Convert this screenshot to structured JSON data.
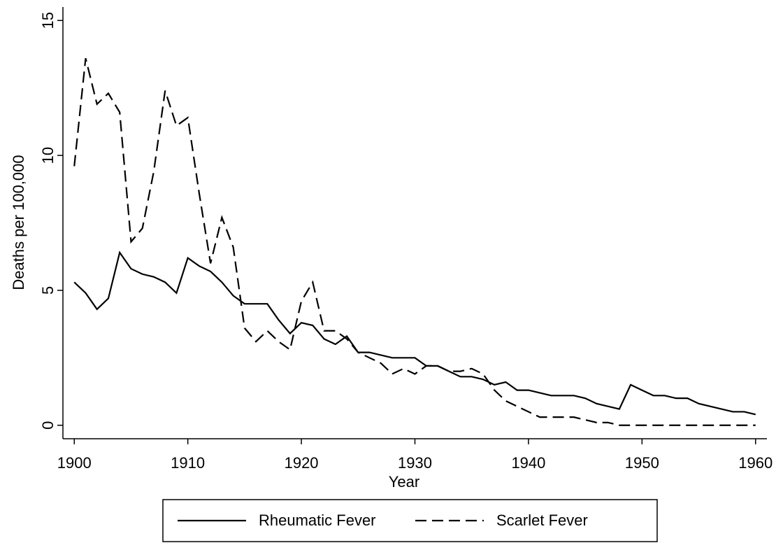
{
  "chart_data": {
    "type": "line",
    "xlabel": "Year",
    "ylabel": "Deaths per 100,000",
    "x": [
      1900,
      1901,
      1902,
      1903,
      1904,
      1905,
      1906,
      1907,
      1908,
      1909,
      1910,
      1911,
      1912,
      1913,
      1914,
      1915,
      1916,
      1917,
      1918,
      1919,
      1920,
      1921,
      1922,
      1923,
      1924,
      1925,
      1926,
      1927,
      1928,
      1929,
      1930,
      1931,
      1932,
      1933,
      1934,
      1935,
      1936,
      1937,
      1938,
      1939,
      1940,
      1941,
      1942,
      1943,
      1944,
      1945,
      1946,
      1947,
      1948,
      1949,
      1950,
      1951,
      1952,
      1953,
      1954,
      1955,
      1956,
      1957,
      1958,
      1959,
      1960
    ],
    "series": [
      {
        "name": "Rheumatic Fever",
        "color": "#000000",
        "style": "solid",
        "values": [
          5.3,
          4.9,
          4.3,
          4.7,
          6.4,
          5.8,
          5.6,
          5.5,
          5.3,
          4.9,
          6.2,
          5.9,
          5.7,
          5.3,
          4.8,
          4.5,
          4.5,
          4.5,
          3.9,
          3.4,
          3.8,
          3.7,
          3.2,
          3.0,
          3.3,
          2.7,
          2.7,
          2.6,
          2.5,
          2.5,
          2.5,
          2.2,
          2.2,
          2.0,
          1.8,
          1.8,
          1.7,
          1.5,
          1.6,
          1.3,
          1.3,
          1.2,
          1.1,
          1.1,
          1.1,
          1.0,
          0.8,
          0.7,
          0.6,
          1.5,
          1.3,
          1.1,
          1.1,
          1.0,
          1.0,
          0.8,
          0.7,
          0.6,
          0.5,
          0.5,
          0.4
        ]
      },
      {
        "name": "Scarlet Fever",
        "color": "#000000",
        "style": "dashed",
        "values": [
          9.6,
          13.6,
          11.9,
          12.3,
          11.6,
          6.8,
          7.3,
          9.4,
          12.4,
          11.1,
          11.4,
          8.6,
          6.0,
          7.7,
          6.6,
          3.6,
          3.1,
          3.5,
          3.1,
          2.8,
          4.6,
          5.3,
          3.5,
          3.5,
          3.2,
          2.7,
          2.5,
          2.3,
          1.9,
          2.1,
          1.9,
          2.2,
          2.2,
          2.0,
          2.0,
          2.1,
          1.9,
          1.3,
          0.9,
          0.7,
          0.5,
          0.3,
          0.3,
          0.3,
          0.3,
          0.2,
          0.1,
          0.1,
          0,
          0,
          0,
          0,
          0,
          0,
          0,
          0,
          0,
          0,
          0,
          0,
          0
        ]
      }
    ],
    "xlim": [
      1899,
      1961
    ],
    "xticks": [
      1900,
      1910,
      1920,
      1930,
      1940,
      1950,
      1960
    ],
    "ylim": [
      -0.5,
      15.5
    ],
    "yticks": [
      0,
      5,
      10,
      15
    ],
    "grid": false,
    "legend": "bottom"
  }
}
